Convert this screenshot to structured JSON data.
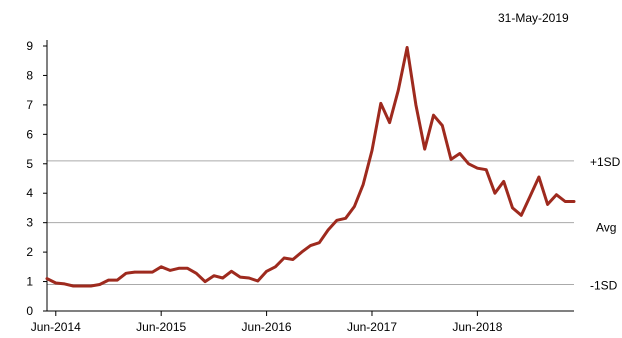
{
  "chart_data": {
    "type": "line",
    "date_stamp": "31-May-2019",
    "ylim": [
      0,
      9
    ],
    "y_ticks": [
      "0",
      "1",
      "2",
      "3",
      "4",
      "5",
      "6",
      "7",
      "8",
      "9"
    ],
    "x_ticks": [
      "Jun-2014",
      "Jun-2015",
      "Jun-2016",
      "Jun-2017",
      "Jun-2018"
    ],
    "reference_lines": [
      {
        "label": "+1SD",
        "value": 5.1
      },
      {
        "label": "Avg",
        "value": 3.0
      },
      {
        "label": "-1SD",
        "value": 0.9
      }
    ],
    "colors": {
      "line": "#9e2a1e",
      "reference": "#aaaaaa",
      "axis": "#000000"
    },
    "series": [
      {
        "x": [
          "2014-05",
          "2014-06",
          "2014-07",
          "2014-08",
          "2014-09",
          "2014-10",
          "2014-11",
          "2014-12",
          "2015-01",
          "2015-02",
          "2015-03",
          "2015-04",
          "2015-05",
          "2015-06",
          "2015-07",
          "2015-08",
          "2015-09",
          "2015-10",
          "2015-11",
          "2015-12",
          "2016-01",
          "2016-02",
          "2016-03",
          "2016-04",
          "2016-05",
          "2016-06",
          "2016-07",
          "2016-08",
          "2016-09",
          "2016-10",
          "2016-11",
          "2016-12",
          "2017-01",
          "2017-02",
          "2017-03",
          "2017-04",
          "2017-05",
          "2017-06",
          "2017-07",
          "2017-08",
          "2017-09",
          "2017-10",
          "2017-11",
          "2017-12",
          "2018-01",
          "2018-02",
          "2018-03",
          "2018-04",
          "2018-05",
          "2018-06",
          "2018-07",
          "2018-08",
          "2018-09",
          "2018-10",
          "2018-11",
          "2018-12",
          "2019-01",
          "2019-02",
          "2019-03",
          "2019-04",
          "2019-05"
        ],
        "values": [
          1.1,
          0.95,
          0.92,
          0.85,
          0.85,
          0.85,
          0.9,
          1.05,
          1.05,
          1.28,
          1.32,
          1.32,
          1.32,
          1.5,
          1.38,
          1.45,
          1.45,
          1.28,
          1.0,
          1.2,
          1.12,
          1.35,
          1.15,
          1.12,
          1.02,
          1.35,
          1.5,
          1.8,
          1.75,
          2.0,
          2.22,
          2.32,
          2.75,
          3.08,
          3.15,
          3.55,
          4.3,
          5.45,
          7.05,
          6.4,
          7.5,
          8.95,
          7.0,
          5.5,
          6.65,
          6.3,
          5.15,
          5.35,
          5.0,
          4.85,
          4.8,
          4.0,
          4.4,
          3.5,
          3.25,
          3.9,
          4.55,
          3.62,
          3.95,
          3.72,
          3.72
        ]
      }
    ]
  }
}
